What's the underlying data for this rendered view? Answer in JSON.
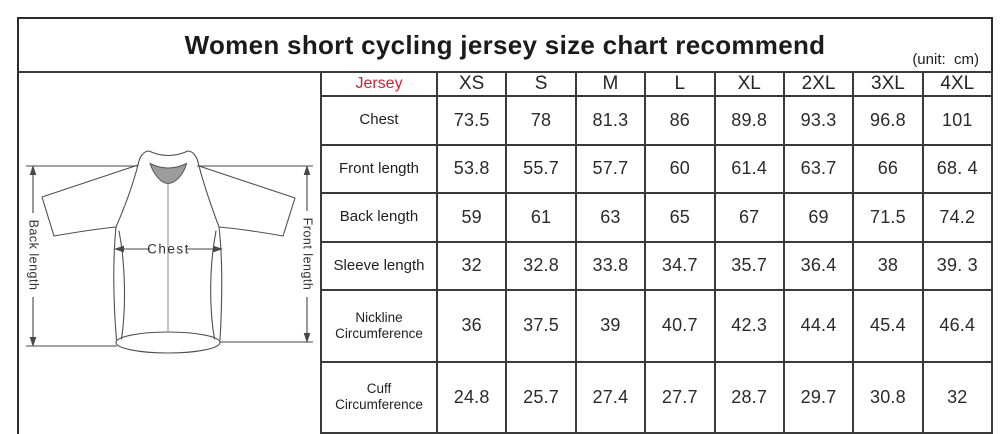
{
  "title": "Women short cycling jersey size chart recommend",
  "unit_note": "(unit:  cm)",
  "colors": {
    "jersey_header_red": "#e0182d",
    "grid_line": "#3a3a3a",
    "ink": "#2b2b2b"
  },
  "diagram": {
    "chest_label": "Chest",
    "back_length_label": "Back length",
    "front_length_label": "Front length"
  },
  "chart_data": {
    "type": "table",
    "title": "Women short cycling jersey size chart recommend",
    "unit": "cm",
    "header_label": "Jersey",
    "sizes": [
      "XS",
      "S",
      "M",
      "L",
      "XL",
      "2XL",
      "3XL",
      "4XL"
    ],
    "rows": [
      {
        "label": "Chest",
        "values": [
          "73.5",
          "78",
          "81.3",
          "86",
          "89.8",
          "93.3",
          "96.8",
          "101"
        ]
      },
      {
        "label": "Front length",
        "values": [
          "53.8",
          "55.7",
          "57.7",
          "60",
          "61.4",
          "63.7",
          "66",
          "68. 4"
        ]
      },
      {
        "label": "Back length",
        "values": [
          "59",
          "61",
          "63",
          "65",
          "67",
          "69",
          "71.5",
          "74.2"
        ]
      },
      {
        "label": "Sleeve length",
        "values": [
          "32",
          "32.8",
          "33.8",
          "34.7",
          "35.7",
          "36.4",
          "38",
          "39. 3"
        ]
      },
      {
        "label": "Nickline Circumference",
        "values": [
          "36",
          "37.5",
          "39",
          "40.7",
          "42.3",
          "44.4",
          "45.4",
          "46.4"
        ]
      },
      {
        "label": "Cuff Circumference",
        "values": [
          "24.8",
          "25.7",
          "27.4",
          "27.7",
          "28.7",
          "29.7",
          "30.8",
          "32"
        ]
      }
    ]
  }
}
